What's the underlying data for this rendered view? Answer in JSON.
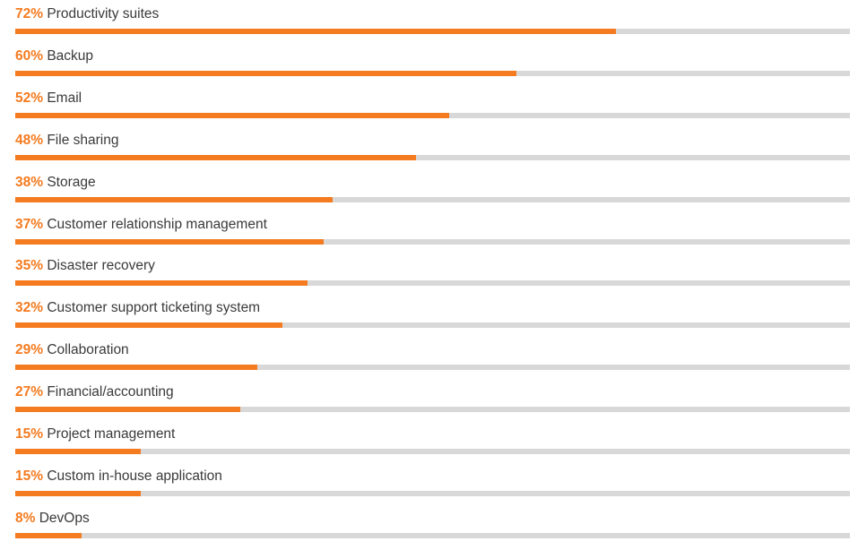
{
  "chart_data": {
    "type": "bar",
    "orientation": "horizontal",
    "categories": [
      "Productivity suites",
      "Backup",
      "Email",
      "File sharing",
      "Storage",
      "Customer relationship management",
      "Disaster recovery",
      "Customer support ticketing system",
      "Collaboration",
      "Financial/accounting",
      "Project management",
      "Custom in-house application",
      "DevOps"
    ],
    "values": [
      72,
      60,
      52,
      48,
      38,
      37,
      35,
      32,
      29,
      27,
      15,
      15,
      8
    ],
    "value_labels": [
      "72%",
      "60%",
      "52%",
      "48%",
      "38%",
      "37%",
      "35%",
      "32%",
      "29%",
      "27%",
      "15%",
      "15%",
      "8%"
    ],
    "xlim": [
      0,
      100
    ],
    "unit": "%",
    "grid": false,
    "legend": "none",
    "colors": {
      "bar": "#f47b20",
      "track": "#d8d8d8",
      "value_text": "#f47b20",
      "label_text": "#3a3a3a"
    }
  }
}
